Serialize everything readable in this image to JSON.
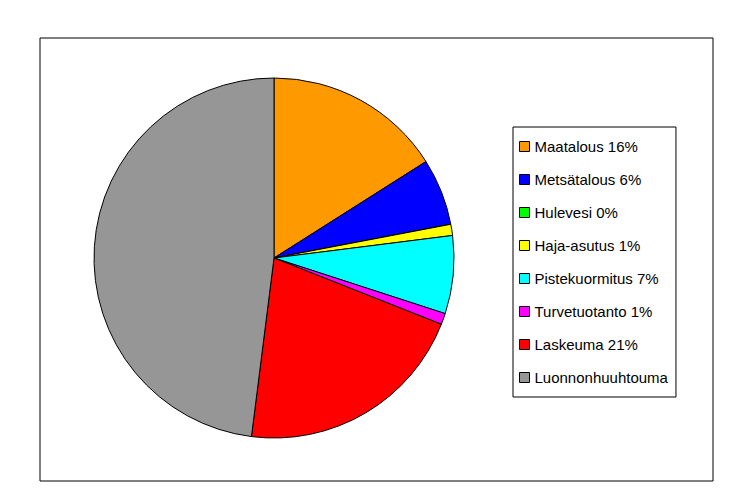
{
  "chart_data": {
    "type": "pie",
    "categories": [
      "Maatalous 16%",
      "Metsätalous 6%",
      "Hulevesi 0%",
      "Haja-asutus 1%",
      "Pistekuormitus 7%",
      "Turvetuotanto 1%",
      "Laskeuma 21%",
      "Luonnonhuuhtouma"
    ],
    "values": [
      16,
      6,
      0,
      1,
      7,
      1,
      21,
      48
    ],
    "colors": [
      "#ff9900",
      "#0000ff",
      "#00ff00",
      "#ffff00",
      "#00ffff",
      "#ff00ff",
      "#ff0000",
      "#969696"
    ],
    "legend": "right"
  }
}
